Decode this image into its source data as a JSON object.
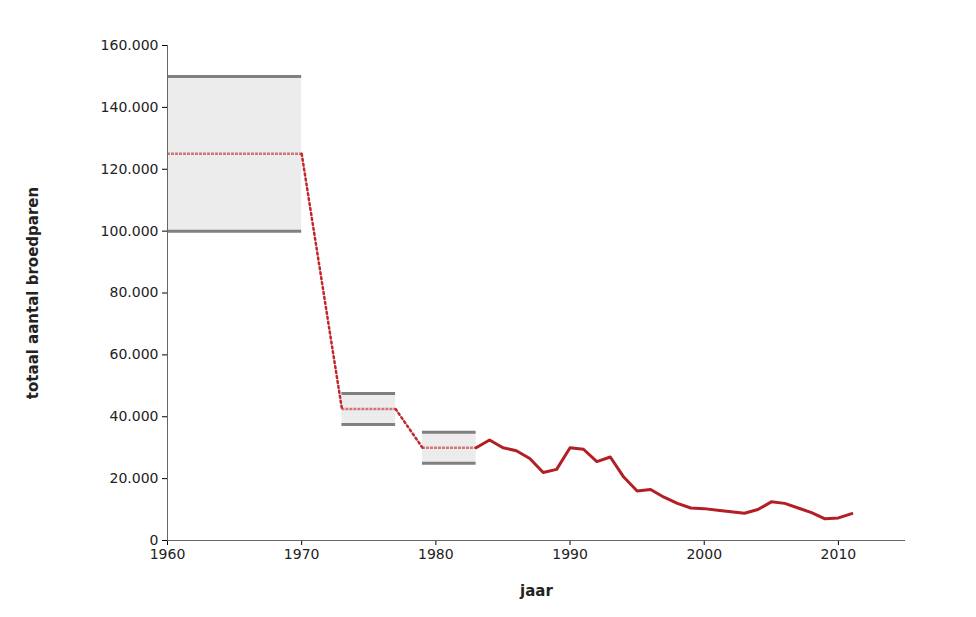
{
  "chart_data": {
    "type": "line",
    "x_label": "jaar",
    "y_label": "totaal aantal broedparen",
    "xlim": [
      1960,
      2015
    ],
    "xticks": [
      1960,
      1970,
      1980,
      1990,
      2000,
      2010
    ],
    "ylim": [
      0,
      160000
    ],
    "yticks": [
      0,
      {
        "value": 20000,
        "label": "20.000"
      },
      {
        "value": 40000,
        "label": "40.000"
      },
      {
        "value": 60000,
        "label": "60.000"
      },
      {
        "value": 80000,
        "label": "80.000"
      },
      {
        "value": 100000,
        "label": "100.000"
      },
      {
        "value": 120000,
        "label": "120.000"
      },
      {
        "value": 140000,
        "label": "140.000"
      },
      {
        "value": 160000,
        "label": "160.000"
      }
    ],
    "grid": false,
    "series": [
      {
        "type": "band",
        "color": "#c0282d",
        "line_style": "dotted",
        "x": [
          [
            1960,
            1970
          ],
          [
            1973,
            1977
          ],
          [
            1979,
            1983
          ]
        ],
        "low": [
          100000,
          37500,
          25000
        ],
        "high": [
          150000,
          47500,
          35000
        ],
        "values": [
          125000,
          42500,
          30000
        ]
      },
      {
        "type": "line",
        "color": "#b21f24",
        "line_style": "solid",
        "x": [
          1983,
          1984,
          1985,
          1986,
          1987,
          1988,
          1989,
          1990,
          1991,
          1992,
          1993,
          1994,
          1995,
          1996,
          1997,
          1998,
          1999,
          2000,
          2001,
          2002,
          2003,
          2004,
          2005,
          2006,
          2007,
          2008,
          2009,
          2010,
          2011
        ],
        "values": [
          30000,
          32500,
          30000,
          29000,
          26500,
          22000,
          23000,
          30000,
          29500,
          25500,
          27000,
          20500,
          16000,
          16500,
          14000,
          12000,
          10500,
          10300,
          9800,
          9300,
          8800,
          10000,
          12500,
          12000,
          10500,
          9000,
          7000,
          7300,
          8700
        ]
      }
    ]
  }
}
